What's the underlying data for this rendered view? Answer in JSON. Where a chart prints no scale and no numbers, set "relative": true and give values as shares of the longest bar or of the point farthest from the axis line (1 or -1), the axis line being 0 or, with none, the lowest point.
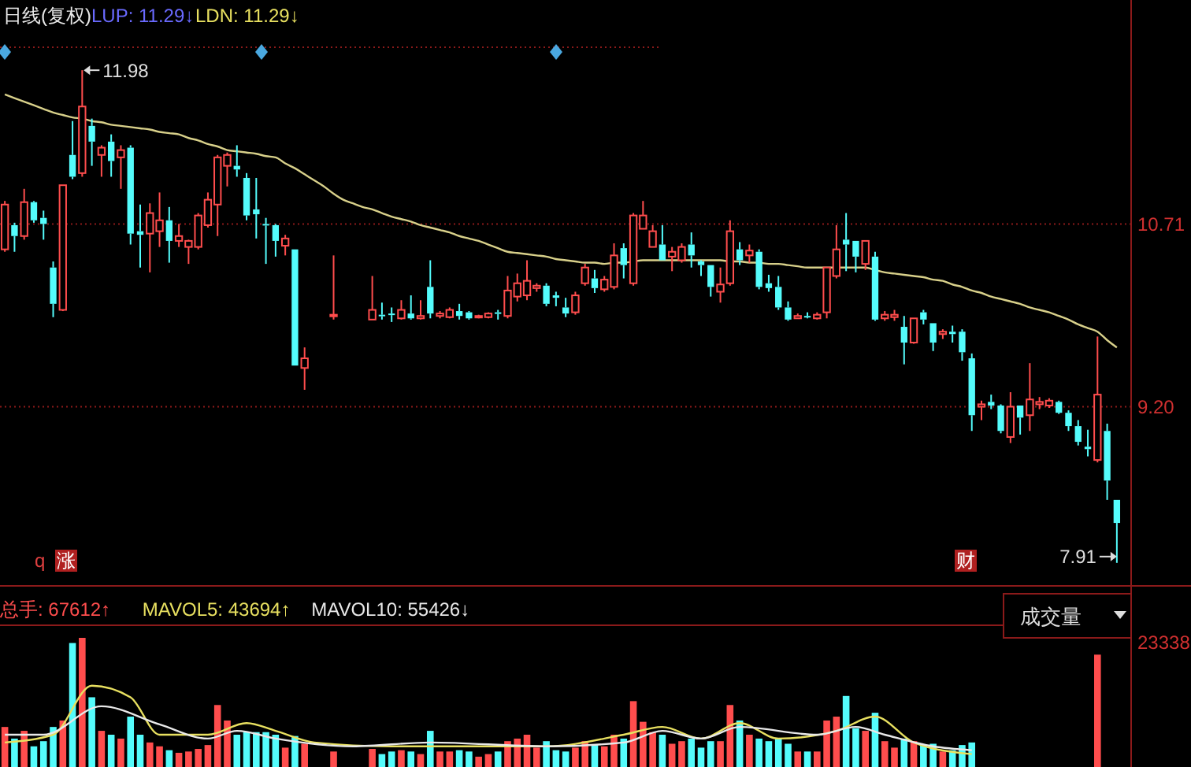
{
  "chart_data": [
    {
      "type": "candlestick",
      "title": "日线(复权)",
      "categories": [
        null,
        null,
        null,
        null,
        null,
        null,
        null,
        null,
        null,
        null,
        null,
        null,
        null,
        null,
        null,
        null,
        null,
        null,
        null,
        null,
        null,
        null,
        null,
        null,
        null,
        null,
        null,
        null,
        null,
        null,
        null,
        null,
        null,
        null,
        null,
        null,
        null,
        null,
        null,
        null,
        null,
        null,
        null,
        null,
        null,
        null,
        null,
        null,
        null,
        null,
        null,
        null,
        null,
        null,
        null,
        null,
        null,
        null,
        null,
        null,
        null,
        null,
        null,
        null,
        null,
        null,
        null,
        null,
        null,
        null,
        null,
        null,
        null,
        null,
        null,
        null,
        null,
        null,
        null,
        null,
        null,
        null,
        null,
        null,
        null,
        null,
        null,
        null,
        null,
        null,
        null,
        null,
        null,
        null,
        null,
        null,
        null,
        null,
        null,
        null,
        null,
        null,
        null,
        null,
        null,
        null,
        null,
        null,
        null,
        null,
        null,
        null,
        null,
        null,
        null,
        null
      ],
      "series": [
        {
          "type": "candlestick",
          "colors": [
            "#ff4d4d",
            "#54fcfc",
            "#ff4d4d",
            "#54fcfc",
            "#54fcfc",
            "#54fcfc",
            "#ff4d4d",
            "#54fcfc",
            "#ff4d4d",
            "#54fcfc",
            "#ff4d4d",
            "#54fcfc",
            "#ff4d4d",
            "#54fcfc",
            "#54fcfc",
            "#ff4d4d",
            "#ff4d4d",
            "#54fcfc",
            "#ff4d4d",
            "#ff4d4d",
            "#ff4d4d",
            "#ff4d4d",
            "#ff4d4d",
            "#ff4d4d",
            "#54fcfc",
            "#54fcfc",
            "#54fcfc",
            "#54fcfc",
            "#54fcfc",
            "#ff4d4d",
            "#54fcfc",
            "#ff4d4d",
            null,
            null,
            "#ff4d4d",
            null,
            null,
            null,
            "#ff4d4d",
            "#54fcfc",
            "#54fcfc",
            "#ff4d4d",
            "#54fcfc",
            "#ff4d4d",
            "#54fcfc",
            "#ff4d4d",
            "#ff4d4d",
            "#54fcfc",
            "#54fcfc",
            "#ff4d4d",
            "#ff4d4d",
            "#54fcfc",
            "#ff4d4d",
            "#ff4d4d",
            "#ff4d4d",
            "#ff4d4d",
            "#54fcfc",
            "#54fcfc",
            "#54fcfc",
            "#ff4d4d",
            "#ff4d4d",
            "#54fcfc",
            "#ff4d4d",
            "#ff4d4d",
            "#54fcfc",
            "#ff4d4d",
            "#ff4d4d",
            "#ff4d4d",
            "#54fcfc",
            "#ff4d4d",
            "#ff4d4d",
            "#54fcfc",
            "#54fcfc",
            "#54fcfc",
            "#ff4d4d",
            "#ff4d4d",
            "#54fcfc",
            "#ff4d4d",
            "#54fcfc",
            "#54fcfc",
            "#54fcfc",
            "#54fcfc",
            "#ff4d4d",
            "#54fcfc",
            "#ff4d4d",
            "#ff4d4d",
            "#ff4d4d",
            "#54fcfc",
            "#54fcfc",
            "#ff4d4d",
            "#54fcfc",
            "#ff4d4d",
            "#ff4d4d",
            "#54fcfc",
            "#ff4d4d",
            "#54fcfc",
            "#54fcfc",
            "#ff4d4d",
            "#54fcfc",
            "#54fcfc",
            "#54fcfc",
            "#ff4d4d",
            "#54fcfc",
            "#54fcfc",
            "#ff4d4d",
            "#54fcfc",
            "#ff4d4d",
            "#ff4d4d",
            "#ff4d4d",
            "#54fcfc",
            "#54fcfc",
            "#54fcfc",
            "#54fcfc",
            "#ff4d4d",
            "#54fcfc",
            "#54fcfc"
          ],
          "ohlc": [
            [
              10.5,
              10.9,
              10.48,
              10.87
            ],
            [
              10.7,
              10.72,
              10.48,
              10.61
            ],
            [
              10.61,
              11.0,
              10.58,
              10.89
            ],
            [
              10.89,
              10.9,
              10.72,
              10.74
            ],
            [
              10.76,
              10.82,
              10.58,
              10.71
            ],
            [
              10.35,
              10.4,
              9.94,
              10.05
            ],
            [
              10.0,
              11.03,
              9.99,
              11.03
            ],
            [
              11.28,
              11.56,
              11.08,
              11.1
            ],
            [
              11.13,
              11.98,
              11.1,
              11.68
            ],
            [
              11.52,
              11.58,
              11.19,
              11.39
            ],
            [
              11.28,
              11.36,
              11.1,
              11.34
            ],
            [
              11.39,
              11.45,
              11.1,
              11.23
            ],
            [
              11.26,
              11.36,
              11.0,
              11.32
            ],
            [
              11.34,
              11.36,
              10.54,
              10.63
            ],
            [
              10.65,
              10.87,
              10.35,
              10.62
            ],
            [
              10.63,
              10.88,
              10.31,
              10.8
            ],
            [
              10.65,
              10.97,
              10.52,
              10.74
            ],
            [
              10.74,
              10.85,
              10.39,
              10.57
            ],
            [
              10.57,
              10.71,
              10.52,
              10.61
            ],
            [
              10.52,
              10.58,
              10.38,
              10.57
            ],
            [
              10.52,
              10.8,
              10.5,
              10.78
            ],
            [
              10.7,
              10.97,
              10.68,
              10.91
            ],
            [
              10.87,
              11.28,
              10.61,
              11.26
            ],
            [
              11.19,
              11.3,
              11.02,
              11.28
            ],
            [
              11.19,
              11.36,
              11.1,
              11.16
            ],
            [
              11.09,
              11.13,
              10.74,
              10.78
            ],
            [
              10.83,
              11.09,
              10.59,
              10.79
            ],
            [
              10.71,
              10.76,
              10.38,
              10.7
            ],
            [
              10.7,
              10.71,
              10.44,
              10.57
            ],
            [
              10.53,
              10.62,
              10.45,
              10.59
            ],
            [
              10.5,
              10.5,
              9.54,
              9.54
            ],
            [
              9.52,
              9.69,
              9.34,
              9.6
            ],
            null,
            null,
            [
              9.95,
              10.45,
              9.92,
              9.96
            ],
            null,
            null,
            null,
            [
              9.92,
              10.28,
              9.92,
              10.0
            ],
            [
              9.96,
              10.06,
              9.92,
              9.95
            ],
            [
              9.97,
              10.02,
              9.9,
              9.96
            ],
            [
              9.93,
              10.08,
              9.92,
              10.0
            ],
            [
              9.97,
              10.12,
              9.92,
              9.93
            ],
            [
              9.93,
              10.08,
              9.92,
              9.95
            ],
            [
              10.19,
              10.41,
              9.93,
              9.97
            ],
            [
              9.95,
              9.99,
              9.93,
              9.97
            ],
            [
              9.94,
              10.02,
              9.93,
              10.0
            ],
            [
              9.99,
              10.05,
              9.92,
              9.95
            ],
            [
              9.98,
              9.99,
              9.92,
              9.93
            ],
            [
              9.94,
              9.96,
              9.93,
              9.95
            ],
            [
              9.94,
              9.98,
              9.93,
              9.97
            ],
            [
              9.98,
              10.0,
              9.92,
              9.97
            ],
            [
              9.95,
              10.28,
              9.93,
              10.16
            ],
            [
              10.11,
              10.3,
              10.07,
              10.22
            ],
            [
              10.12,
              10.41,
              10.08,
              10.24
            ],
            [
              10.18,
              10.22,
              10.15,
              10.2
            ],
            [
              10.2,
              10.22,
              10.03,
              10.05
            ],
            [
              10.12,
              10.15,
              10.03,
              10.1
            ],
            [
              10.02,
              10.1,
              9.94,
              9.97
            ],
            [
              9.98,
              10.15,
              9.96,
              10.12
            ],
            [
              10.22,
              10.38,
              10.2,
              10.35
            ],
            [
              10.26,
              10.33,
              10.14,
              10.18
            ],
            [
              10.17,
              10.28,
              10.15,
              10.25
            ],
            [
              10.19,
              10.55,
              10.17,
              10.45
            ],
            [
              10.51,
              10.55,
              10.26,
              10.37
            ],
            [
              10.22,
              10.8,
              10.2,
              10.78
            ],
            [
              10.67,
              10.9,
              10.67,
              10.78
            ],
            [
              10.52,
              10.7,
              10.52,
              10.65
            ],
            [
              10.54,
              10.7,
              10.41,
              10.41
            ],
            [
              10.44,
              10.52,
              10.32,
              10.48
            ],
            [
              10.41,
              10.55,
              10.39,
              10.52
            ],
            [
              10.54,
              10.64,
              10.35,
              10.45
            ],
            [
              10.4,
              10.41,
              10.28,
              10.37
            ],
            [
              10.37,
              10.37,
              10.11,
              10.19
            ],
            [
              10.15,
              10.35,
              10.06,
              10.21
            ],
            [
              10.22,
              10.74,
              10.2,
              10.65
            ],
            [
              10.5,
              10.56,
              10.37,
              10.41
            ],
            [
              10.45,
              10.54,
              10.39,
              10.49
            ],
            [
              10.48,
              10.5,
              10.17,
              10.19
            ],
            [
              10.22,
              10.29,
              10.15,
              10.18
            ],
            [
              10.19,
              10.28,
              10.0,
              10.02
            ],
            [
              10.02,
              10.07,
              9.91,
              9.92
            ],
            [
              9.93,
              9.97,
              9.93,
              9.95
            ],
            [
              9.95,
              9.98,
              9.93,
              9.94
            ],
            [
              9.93,
              9.98,
              9.92,
              9.96
            ],
            [
              9.98,
              10.35,
              9.93,
              10.35
            ],
            [
              10.28,
              10.7,
              10.26,
              10.5
            ],
            [
              10.58,
              10.8,
              10.32,
              10.54
            ],
            [
              10.57,
              10.57,
              10.31,
              10.44
            ],
            [
              10.38,
              10.57,
              10.33,
              10.57
            ],
            [
              10.44,
              10.48,
              9.91,
              9.92
            ],
            [
              9.93,
              9.99,
              9.91,
              9.96
            ],
            [
              9.94,
              10.0,
              9.91,
              9.96
            ],
            [
              9.86,
              9.95,
              9.55,
              9.73
            ],
            [
              9.73,
              9.93,
              9.72,
              9.93
            ],
            [
              9.98,
              10.0,
              9.88,
              9.92
            ],
            [
              9.89,
              9.89,
              9.66,
              9.73
            ],
            [
              9.8,
              9.84,
              9.76,
              9.82
            ],
            [
              9.82,
              9.87,
              9.73,
              9.8
            ],
            [
              9.82,
              9.84,
              9.58,
              9.65
            ],
            [
              9.6,
              9.64,
              9.0,
              9.13
            ],
            [
              9.2,
              9.25,
              9.09,
              9.22
            ],
            [
              9.24,
              9.3,
              9.18,
              9.21
            ],
            [
              9.21,
              9.22,
              8.98,
              9.0
            ],
            [
              8.95,
              9.32,
              8.9,
              9.2
            ],
            [
              9.21,
              9.21,
              8.97,
              9.11
            ],
            [
              9.13,
              9.56,
              9.0,
              9.26
            ],
            [
              9.22,
              9.28,
              9.18,
              9.24
            ],
            [
              9.21,
              9.27,
              9.19,
              9.25
            ],
            [
              9.24,
              9.25,
              9.14,
              9.15
            ],
            [
              9.15,
              9.17,
              9.0,
              9.04
            ],
            [
              9.04,
              9.09,
              8.88,
              8.91
            ],
            [
              8.87,
              9.01,
              8.79,
              8.85
            ],
            [
              8.76,
              9.78,
              8.74,
              9.3
            ],
            [
              9.0,
              9.06,
              8.43,
              8.59
            ],
            [
              8.43,
              8.43,
              7.91,
              8.24
            ]
          ]
        },
        {
          "type": "line",
          "color": "#d8d08a",
          "values": [
            11.78,
            11.75,
            11.72,
            11.69,
            11.66,
            11.63,
            11.61,
            11.59,
            11.58,
            11.56,
            11.55,
            11.53,
            11.52,
            11.51,
            11.5,
            11.49,
            11.47,
            11.46,
            11.45,
            11.42,
            11.4,
            11.37,
            11.35,
            11.32,
            11.31,
            11.3,
            11.29,
            11.27,
            11.26,
            11.21,
            11.17,
            11.12,
            11.07,
            11.02,
            10.96,
            10.91,
            10.88,
            10.85,
            10.83,
            10.8,
            10.77,
            10.75,
            10.73,
            10.7,
            10.68,
            10.66,
            10.64,
            10.61,
            10.59,
            10.57,
            10.54,
            10.51,
            10.48,
            10.47,
            10.46,
            10.45,
            10.44,
            10.42,
            10.41,
            10.4,
            10.39,
            10.39,
            10.38,
            10.39,
            10.39,
            10.4,
            10.41,
            10.41,
            10.41,
            10.41,
            10.41,
            10.41,
            10.41,
            10.41,
            10.41,
            10.4,
            10.4,
            10.39,
            10.39,
            10.38,
            10.38,
            10.37,
            10.36,
            10.35,
            10.35,
            10.35,
            10.35,
            10.35,
            10.35,
            10.35,
            10.33,
            10.31,
            10.3,
            10.29,
            10.28,
            10.27,
            10.25,
            10.24,
            10.21,
            10.19,
            10.16,
            10.14,
            10.11,
            10.09,
            10.07,
            10.05,
            10.02,
            10.0,
            9.98,
            9.95,
            9.92,
            9.88,
            9.85,
            9.82,
            9.75,
            9.69
          ]
        }
      ],
      "ylim": [
        7.72,
        12.56
      ],
      "yticks": [
        {
          "value": 9.2,
          "label": "9.20"
        },
        10.71
      ],
      "grid": "y",
      "tick_labels": "y",
      "annotations": [
        "LUP: 11.29↓",
        "LDN: 11.29↓",
        "q",
        "涨",
        "财",
        "11.98",
        "7.91"
      ]
    },
    {
      "type": "bar",
      "relative": true,
      "categories": [
        null,
        null,
        null,
        null,
        null,
        null,
        null,
        null,
        null,
        null,
        null,
        null,
        null,
        null,
        null,
        null,
        null,
        null,
        null,
        null,
        null,
        null,
        null,
        null,
        null,
        null,
        null,
        null,
        null,
        null,
        null,
        null,
        null,
        null,
        null,
        null,
        null,
        null,
        null,
        null,
        null,
        null,
        null,
        null,
        null,
        null,
        null,
        null,
        null,
        null,
        null,
        null,
        null,
        null,
        null,
        null,
        null,
        null,
        null,
        null,
        null,
        null,
        null,
        null,
        null,
        null,
        null,
        null,
        null,
        null,
        null,
        null,
        null,
        null,
        null,
        null,
        null,
        null,
        null,
        null,
        null,
        null,
        null,
        null,
        null,
        null,
        null,
        null,
        null,
        null,
        null,
        null,
        null,
        null,
        null,
        null,
        null,
        null,
        null,
        null,
        null,
        null,
        null,
        null,
        null,
        null,
        null,
        null,
        null,
        null,
        null,
        null,
        null,
        null,
        null,
        null
      ],
      "series": [
        {
          "type": "bar",
          "name": "总手: 67612↑",
          "color": "#ff4d4d",
          "values": [
            0.31,
            0.22,
            0.28,
            0.16,
            0.2,
            0.31,
            0.36,
            0.96,
            1,
            0.54,
            0.28,
            0.25,
            0.22,
            0.39,
            0.25,
            0.19,
            0.16,
            0.13,
            0.11,
            0.12,
            0.14,
            0.17,
            0.48,
            0.36,
            0.25,
            0.27,
            0.27,
            0.27,
            0.25,
            0.15,
            0.24,
            0.18,
            null,
            null,
            0.12,
            null,
            null,
            null,
            0.14,
            0.1,
            0.12,
            0.13,
            0.12,
            0.1,
            0.28,
            0.12,
            0.12,
            0.13,
            0.12,
            0.08,
            0.1,
            0.12,
            0.2,
            0.22,
            0.25,
            0.15,
            0.2,
            0.13,
            0.12,
            0.15,
            0.2,
            0.17,
            0.16,
            0.25,
            0.22,
            0.51,
            0.35,
            0.27,
            0.25,
            0.18,
            0.2,
            0.22,
            0.15,
            0.2,
            0.2,
            0.48,
            0.36,
            0.25,
            0.22,
            0.2,
            0.22,
            0.18,
            0.12,
            0.12,
            0.12,
            0.36,
            0.39,
            0.55,
            0.3,
            0.28,
            0.42,
            0.2,
            0.15,
            0.22,
            0.2,
            0.17,
            0.18,
            0.12,
            0.13,
            0.17,
            0.19,
            null,
            null,
            null,
            null,
            null,
            null,
            null,
            null,
            null,
            null,
            null,
            null,
            0.87,
            null,
            null
          ],
          "colors": [
            "#ff4d4d",
            "#54fcfc",
            "#ff4d4d",
            "#54fcfc",
            "#54fcfc",
            "#54fcfc",
            "#ff4d4d",
            "#54fcfc",
            "#ff4d4d",
            "#54fcfc",
            "#ff4d4d",
            "#54fcfc",
            "#ff4d4d",
            "#54fcfc",
            "#54fcfc",
            "#ff4d4d",
            "#ff4d4d",
            "#54fcfc",
            "#ff4d4d",
            "#ff4d4d",
            "#ff4d4d",
            "#ff4d4d",
            "#ff4d4d",
            "#ff4d4d",
            "#54fcfc",
            "#54fcfc",
            "#54fcfc",
            "#54fcfc",
            "#54fcfc",
            "#ff4d4d",
            "#54fcfc",
            "#ff4d4d",
            null,
            null,
            "#ff4d4d",
            null,
            null,
            null,
            "#ff4d4d",
            "#54fcfc",
            "#54fcfc",
            "#ff4d4d",
            "#54fcfc",
            "#ff4d4d",
            "#54fcfc",
            "#ff4d4d",
            "#ff4d4d",
            "#54fcfc",
            "#54fcfc",
            "#ff4d4d",
            "#ff4d4d",
            "#54fcfc",
            "#ff4d4d",
            "#ff4d4d",
            "#ff4d4d",
            "#ff4d4d",
            "#54fcfc",
            "#54fcfc",
            "#54fcfc",
            "#ff4d4d",
            "#ff4d4d",
            "#54fcfc",
            "#ff4d4d",
            "#ff4d4d",
            "#54fcfc",
            "#ff4d4d",
            "#ff4d4d",
            "#ff4d4d",
            "#54fcfc",
            "#ff4d4d",
            "#ff4d4d",
            "#54fcfc",
            "#54fcfc",
            "#54fcfc",
            "#ff4d4d",
            "#ff4d4d",
            "#54fcfc",
            "#ff4d4d",
            "#54fcfc",
            "#54fcfc",
            "#54fcfc",
            "#54fcfc",
            "#ff4d4d",
            "#54fcfc",
            "#ff4d4d",
            "#ff4d4d",
            "#ff4d4d",
            "#54fcfc",
            "#54fcfc",
            "#ff4d4d",
            "#54fcfc",
            "#ff4d4d",
            "#ff4d4d",
            "#54fcfc",
            "#ff4d4d",
            "#54fcfc",
            "#54fcfc",
            "#ff4d4d",
            "#54fcfc",
            "#54fcfc",
            "#54fcfc",
            null,
            null,
            null,
            null,
            null,
            null,
            null,
            null,
            null,
            null,
            null,
            null,
            "#ff4d4d",
            null,
            null
          ]
        },
        {
          "type": "line",
          "name": "MAVOL5: 43694↑",
          "color": "#e8e060",
          "values": [
            0.19,
            null,
            null,
            null,
            null,
            0.25,
            null,
            null,
            null,
            0.63,
            null,
            null,
            null,
            0.54,
            null,
            null,
            0.25,
            null,
            null,
            null,
            null,
            0.25,
            null,
            null,
            null,
            0.34,
            null,
            null,
            0.28,
            null,
            null,
            null,
            0.19,
            null,
            null,
            null,
            null,
            null,
            null,
            null,
            0.16,
            null,
            null,
            null,
            null,
            null,
            null,
            null,
            0.16,
            null,
            null,
            null,
            null,
            null,
            null,
            null,
            0.16,
            null,
            null,
            null,
            null,
            null,
            null,
            null,
            0.25,
            null,
            null,
            null,
            0.31,
            null,
            null,
            null,
            0.22,
            null,
            null,
            null,
            0.34,
            null,
            null,
            null,
            0.22,
            null,
            null,
            null,
            null,
            null,
            0.28,
            null,
            null,
            null,
            0.39,
            null,
            null,
            null,
            0.19,
            null,
            null,
            null,
            null,
            null,
            0.1,
            null,
            null,
            null,
            null,
            null,
            null,
            null,
            null,
            null,
            null,
            null,
            null,
            null,
            null,
            null
          ]
        },
        {
          "type": "line",
          "name": "MAVOL10: 55426↓",
          "color": "#e8e8e8",
          "values": [
            0.25,
            null,
            null,
            null,
            0.25,
            null,
            null,
            null,
            null,
            null,
            0.47,
            null,
            null,
            null,
            null,
            null,
            0.33,
            null,
            null,
            null,
            null,
            0.22,
            null,
            null,
            0.28,
            null,
            null,
            null,
            0.22,
            null,
            null,
            null,
            null,
            null,
            null,
            null,
            0.16,
            null,
            null,
            null,
            null,
            null,
            null,
            null,
            0.19,
            null,
            null,
            null,
            null,
            null,
            null,
            null,
            null,
            null,
            null,
            null,
            0.16,
            null,
            null,
            null,
            null,
            null,
            null,
            null,
            0.19,
            null,
            null,
            null,
            0.28,
            null,
            null,
            null,
            0.22,
            null,
            null,
            null,
            0.31,
            null,
            null,
            null,
            null,
            null,
            null,
            null,
            0.25,
            null,
            null,
            null,
            0.31,
            null,
            null,
            0.25,
            null,
            null,
            null,
            null,
            0.16,
            null,
            null,
            null,
            0.13,
            null,
            null,
            null,
            null,
            null,
            null,
            null,
            null,
            null,
            null,
            null,
            null,
            null,
            null,
            null
          ]
        }
      ],
      "legend": "top left",
      "annotations": [
        "成交量",
        "23338"
      ]
    }
  ]
}
